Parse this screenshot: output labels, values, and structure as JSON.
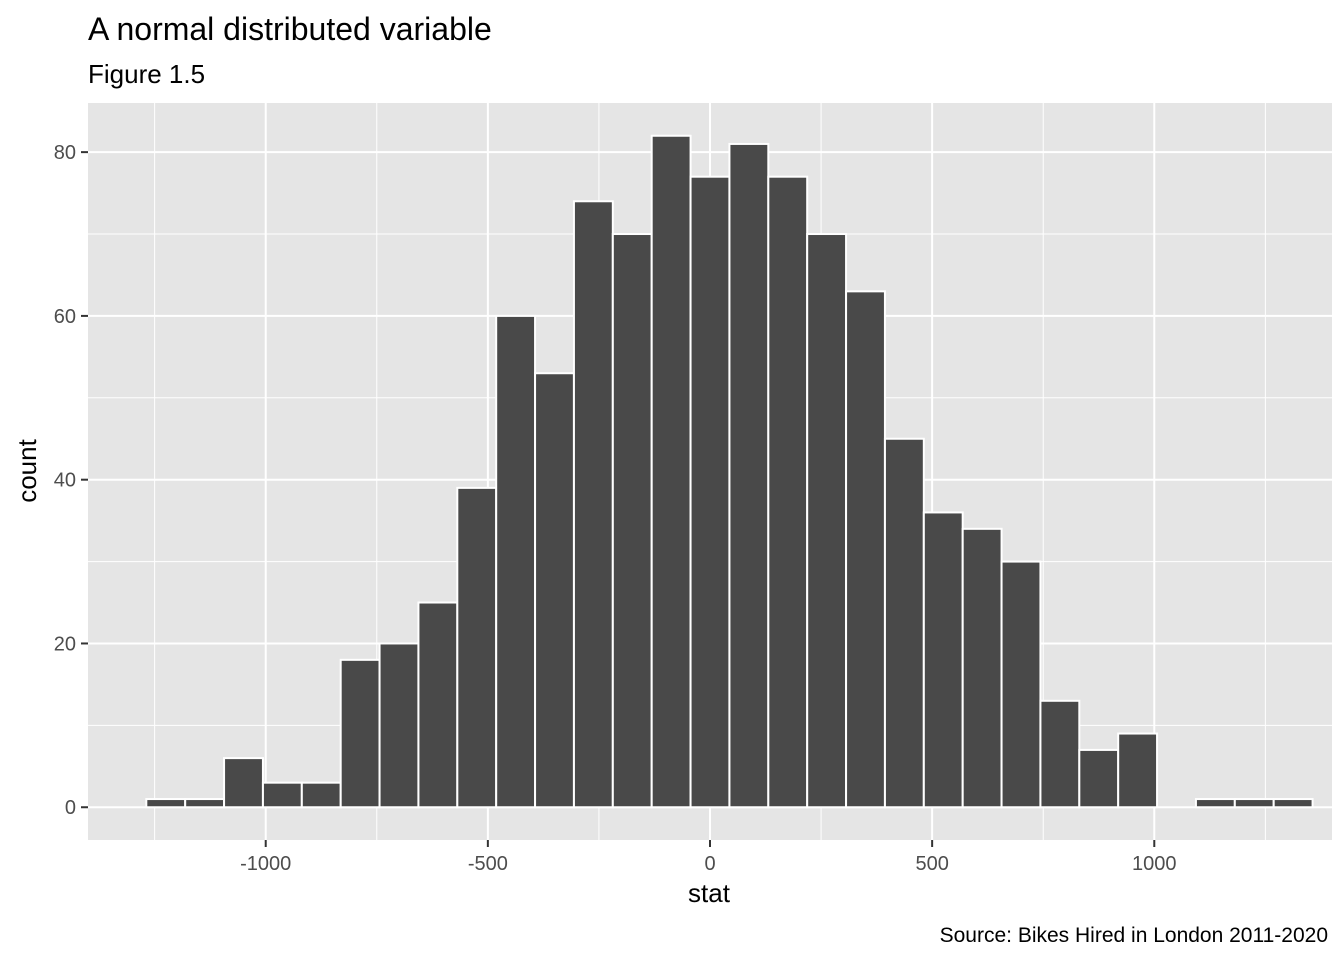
{
  "chart_data": {
    "type": "bar",
    "title": "A normal distributed variable",
    "subtitle": "Figure 1.5",
    "xlabel": "stat",
    "ylabel": "count",
    "caption": "Source: Bikes Hired in London 2011-2020",
    "xlim": [
      -1400,
      1400
    ],
    "ylim": [
      -4,
      86
    ],
    "x_ticks": [
      -1000,
      -500,
      0,
      500,
      1000
    ],
    "x_tick_labels": [
      "-1000",
      "-500",
      "0",
      "500",
      "1000"
    ],
    "y_ticks": [
      0,
      20,
      40,
      60,
      80
    ],
    "y_tick_labels": [
      "0",
      "20",
      "40",
      "60",
      "80"
    ],
    "grid": true,
    "bin_width": 87.5,
    "bin_centers": [
      -1225,
      -1137.5,
      -1050,
      -962.5,
      -875,
      -787.5,
      -700,
      -612.5,
      -525,
      -437.5,
      -350,
      -262.5,
      -175,
      -87.5,
      0,
      87.5,
      175,
      262.5,
      350,
      437.5,
      525,
      612.5,
      700,
      787.5,
      875,
      962.5,
      1050,
      1137.5,
      1225,
      1312.5
    ],
    "values": [
      1,
      1,
      6,
      3,
      3,
      18,
      20,
      25,
      39,
      60,
      53,
      74,
      70,
      82,
      77,
      81,
      77,
      70,
      63,
      45,
      36,
      34,
      30,
      13,
      7,
      9,
      0,
      1,
      1,
      1
    ],
    "colors": {
      "bar_fill": "#494949",
      "bar_stroke": "#ffffff",
      "panel": "#e5e5e5",
      "grid": "#ffffff"
    }
  }
}
